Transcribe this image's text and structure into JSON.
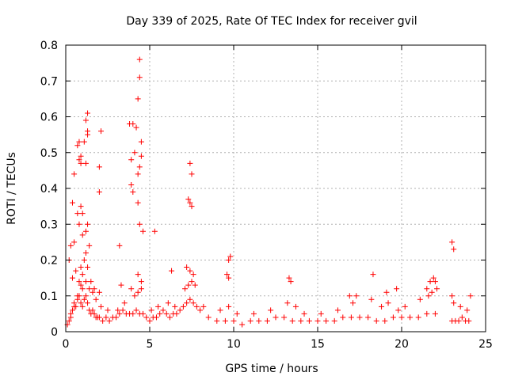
{
  "chart_data": {
    "type": "scatter",
    "title": "Day 339 of 2025, Rate Of TEC Index for receiver gvil",
    "xlabel": "GPS time / hours",
    "ylabel": "ROTI / TECUs",
    "xlim": [
      0,
      25
    ],
    "ylim": [
      0,
      0.8
    ],
    "xticks": [
      0,
      5,
      10,
      15,
      20,
      25
    ],
    "yticks": [
      0,
      0.1,
      0.2,
      0.3,
      0.4,
      0.5,
      0.6,
      0.7,
      0.8
    ],
    "xtick_labels": [
      "0",
      "5",
      "10",
      "15",
      "20",
      "25"
    ],
    "ytick_labels": [
      "0",
      "0.1",
      "0.2",
      "0.3",
      "0.4",
      "0.5",
      "0.6",
      "0.7",
      "0.8"
    ],
    "grid": true,
    "marker": "plus",
    "color": "#ff0000",
    "series": [
      {
        "x": [
          0.1,
          0.2,
          0.3,
          0.4,
          0.5,
          0.6,
          0.7,
          0.8,
          0.9,
          1.0,
          1.1,
          1.2,
          1.3,
          1.4,
          1.5,
          1.6,
          1.7,
          1.8,
          1.9,
          2.0,
          2.2,
          2.4,
          2.6,
          2.8,
          3.0,
          3.2,
          3.4,
          3.6,
          3.8,
          4.0,
          4.2,
          4.4,
          4.6,
          4.8,
          5.0,
          5.2,
          5.4,
          5.6,
          5.8,
          6.0,
          6.2,
          6.4,
          6.6,
          6.8,
          7.0,
          7.2,
          7.4,
          7.6,
          7.8,
          8.0,
          8.5,
          9.0,
          9.5,
          10.0,
          10.5,
          11.0,
          11.5,
          12.0,
          12.5,
          13.0,
          13.5,
          14.0,
          14.5,
          15.0,
          15.5,
          16.0,
          16.5,
          17.0,
          17.5,
          18.0,
          18.5,
          19.0,
          19.5,
          20.0,
          20.5,
          21.0,
          21.5,
          22.0,
          23.0,
          23.2,
          23.4,
          23.6,
          23.8,
          24.0,
          0.3,
          0.5,
          0.7,
          0.9,
          1.0,
          1.2,
          1.4,
          1.6,
          1.8,
          2.1,
          2.5,
          3.1,
          3.5,
          4.1,
          4.3,
          4.5,
          5.1,
          5.5,
          6.1,
          6.5,
          7.1,
          7.3,
          7.5,
          7.7,
          8.2,
          9.2,
          9.7,
          10.2,
          11.2,
          12.2,
          13.2,
          13.7,
          14.2,
          15.2,
          16.2,
          17.1,
          17.3,
          18.2,
          18.8,
          19.2,
          19.8,
          20.2,
          21.1,
          21.6,
          21.8,
          22.1,
          23.1,
          23.5,
          23.9,
          0.4,
          0.6,
          0.8,
          0.9,
          1.0,
          1.1,
          1.2,
          1.3,
          1.5,
          1.7,
          2.0,
          3.3,
          3.9,
          4.3,
          4.5,
          6.3,
          7.2,
          7.4,
          7.6,
          9.6,
          9.7,
          13.3,
          13.4,
          16.9,
          18.3,
          19.1,
          19.7,
          21.5,
          21.7,
          21.9,
          22.0,
          23.0,
          24.1,
          0.2,
          0.3,
          0.5,
          0.7,
          0.8,
          0.9,
          1.0,
          1.2,
          1.3,
          1.4,
          2.0,
          3.2,
          3.9,
          4.0,
          4.3,
          4.4,
          4.6,
          5.3,
          7.3,
          7.4,
          7.5,
          9.7,
          9.8,
          23.0,
          23.1,
          0.4,
          0.5,
          0.7,
          0.8,
          0.9,
          1.0,
          1.1,
          1.2,
          1.3,
          2.0,
          2.1,
          3.9,
          4.0,
          4.1,
          4.3,
          4.4,
          4.5,
          7.4,
          7.5,
          0.8,
          0.9,
          1.2,
          1.3,
          1.3,
          3.8,
          4.2,
          4.3,
          4.4,
          4.4,
          4.5
        ],
        "y": [
          0.02,
          0.03,
          0.04,
          0.06,
          0.08,
          0.07,
          0.09,
          0.1,
          0.08,
          0.07,
          0.09,
          0.1,
          0.08,
          0.06,
          0.05,
          0.06,
          0.05,
          0.04,
          0.04,
          0.04,
          0.03,
          0.04,
          0.03,
          0.04,
          0.04,
          0.05,
          0.06,
          0.05,
          0.05,
          0.05,
          0.06,
          0.05,
          0.05,
          0.04,
          0.03,
          0.04,
          0.04,
          0.05,
          0.06,
          0.05,
          0.04,
          0.05,
          0.05,
          0.06,
          0.07,
          0.08,
          0.09,
          0.08,
          0.07,
          0.06,
          0.04,
          0.03,
          0.03,
          0.03,
          0.02,
          0.03,
          0.03,
          0.03,
          0.04,
          0.04,
          0.03,
          0.03,
          0.03,
          0.03,
          0.03,
          0.03,
          0.04,
          0.04,
          0.04,
          0.04,
          0.03,
          0.03,
          0.04,
          0.04,
          0.04,
          0.04,
          0.05,
          0.05,
          0.03,
          0.03,
          0.03,
          0.04,
          0.03,
          0.03,
          0.05,
          0.07,
          0.1,
          0.13,
          0.12,
          0.14,
          0.12,
          0.11,
          0.09,
          0.07,
          0.06,
          0.06,
          0.08,
          0.1,
          0.11,
          0.12,
          0.06,
          0.07,
          0.08,
          0.07,
          0.12,
          0.13,
          0.14,
          0.13,
          0.07,
          0.06,
          0.07,
          0.05,
          0.05,
          0.06,
          0.08,
          0.07,
          0.05,
          0.05,
          0.06,
          0.08,
          0.1,
          0.09,
          0.07,
          0.08,
          0.06,
          0.07,
          0.09,
          0.1,
          0.11,
          0.12,
          0.08,
          0.07,
          0.06,
          0.15,
          0.17,
          0.14,
          0.18,
          0.16,
          0.2,
          0.22,
          0.18,
          0.14,
          0.12,
          0.11,
          0.13,
          0.12,
          0.16,
          0.14,
          0.17,
          0.18,
          0.17,
          0.16,
          0.16,
          0.15,
          0.15,
          0.14,
          0.1,
          0.16,
          0.11,
          0.12,
          0.12,
          0.14,
          0.15,
          0.14,
          0.1,
          0.1,
          0.2,
          0.24,
          0.25,
          0.33,
          0.3,
          0.35,
          0.27,
          0.28,
          0.3,
          0.24,
          0.39,
          0.24,
          0.41,
          0.39,
          0.36,
          0.3,
          0.28,
          0.28,
          0.37,
          0.36,
          0.35,
          0.2,
          0.21,
          0.25,
          0.23,
          0.36,
          0.44,
          0.52,
          0.48,
          0.47,
          0.33,
          0.53,
          0.47,
          0.55,
          0.46,
          0.56,
          0.48,
          0.58,
          0.5,
          0.44,
          0.46,
          0.53,
          0.47,
          0.44,
          0.53,
          0.49,
          0.59,
          0.61,
          0.56,
          0.58,
          0.57,
          0.65,
          0.71,
          0.76,
          0.49
        ]
      }
    ]
  }
}
